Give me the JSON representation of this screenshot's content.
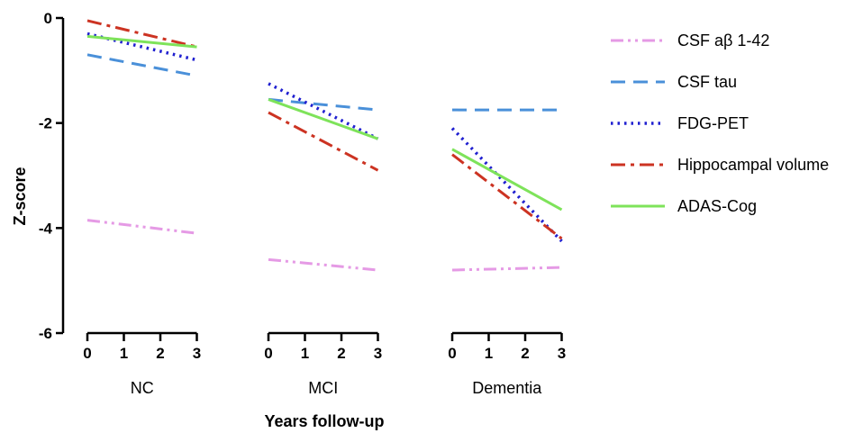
{
  "chart_data": {
    "type": "line",
    "xlabel": "Years follow-up",
    "ylabel": "Z-score",
    "ylim": [
      -6,
      0
    ],
    "yticks": [
      "0",
      "-2",
      "-4",
      "-6"
    ],
    "x_ticks": [
      "0",
      "1",
      "2",
      "3"
    ],
    "groups": [
      "NC",
      "MCI",
      "Dementia"
    ],
    "legend_position": "right",
    "series": [
      {
        "name": "CSF aβ 1-42",
        "color": "#e59ae5",
        "dash": "dash-dot-dot",
        "values": [
          [
            -3.85,
            -4.1
          ],
          [
            -4.6,
            -4.8
          ],
          [
            -4.8,
            -4.75
          ]
        ]
      },
      {
        "name": "CSF tau",
        "color": "#4a90d9",
        "dash": "dash",
        "values": [
          [
            -0.7,
            -1.1
          ],
          [
            -1.55,
            -1.75
          ],
          [
            -1.75,
            -1.75
          ]
        ]
      },
      {
        "name": "FDG-PET",
        "color": "#2020d0",
        "dash": "dot",
        "values": [
          [
            -0.3,
            -0.8
          ],
          [
            -1.25,
            -2.3
          ],
          [
            -2.1,
            -4.25
          ]
        ]
      },
      {
        "name": "Hippocampal volume",
        "color": "#cc3322",
        "dash": "dash-dot",
        "values": [
          [
            -0.05,
            -0.55
          ],
          [
            -1.8,
            -2.9
          ],
          [
            -2.6,
            -4.2
          ]
        ]
      },
      {
        "name": "ADAS-Cog",
        "color": "#7ee35a",
        "dash": "solid",
        "values": [
          [
            -0.35,
            -0.55
          ],
          [
            -1.55,
            -2.3
          ],
          [
            -2.5,
            -3.65
          ]
        ]
      }
    ]
  }
}
